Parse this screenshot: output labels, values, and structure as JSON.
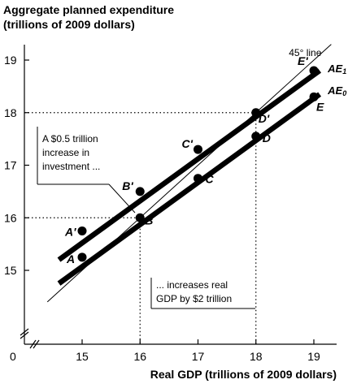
{
  "chart_data": {
    "type": "line",
    "title": "Aggregate planned expenditure",
    "title_line2": "(trillions of 2009 dollars)",
    "xlabel": "Real GDP (trillions of 2009 dollars)",
    "origin_label": "0",
    "xlim": [
      14.3,
      19.5
    ],
    "ylim": [
      14.3,
      19.5
    ],
    "x_ticks": [
      15,
      16,
      17,
      18,
      19
    ],
    "y_ticks": [
      15,
      16,
      17,
      18,
      19
    ],
    "grid": false,
    "reference_line": {
      "label": "45° line",
      "x": [
        14.4,
        19.3
      ],
      "y": [
        14.4,
        19.3
      ]
    },
    "series": [
      {
        "name": "AE",
        "name_sub": "1",
        "x": [
          14.6,
          19.1
        ],
        "y": [
          15.2,
          18.8
        ],
        "points": [
          {
            "label": "A'",
            "x": 15,
            "y": 15.75
          },
          {
            "label": "B'",
            "x": 16,
            "y": 16.5
          },
          {
            "label": "C'",
            "x": 17,
            "y": 17.3
          },
          {
            "label": "D'",
            "x": 18,
            "y": 18
          },
          {
            "label": "E'",
            "x": 19,
            "y": 18.8
          }
        ]
      },
      {
        "name": "AE",
        "name_sub": "0",
        "x": [
          14.6,
          19.1
        ],
        "y": [
          14.75,
          18.35
        ],
        "points": [
          {
            "label": "A",
            "x": 15,
            "y": 15.25
          },
          {
            "label": "B",
            "x": 16,
            "y": 16
          },
          {
            "label": "C",
            "x": 17,
            "y": 16.75
          },
          {
            "label": "D",
            "x": 18,
            "y": 17.55
          },
          {
            "label": "E",
            "x": 19,
            "y": 18.3
          }
        ]
      }
    ],
    "guides": [
      {
        "x": 16,
        "y": 16
      },
      {
        "x": 18,
        "y": 18
      }
    ],
    "annotations": [
      {
        "lines": [
          "A $0.5 trillion",
          "increase in",
          "investment ..."
        ]
      },
      {
        "lines": [
          "... increases real",
          "GDP by $2 trillion"
        ]
      }
    ]
  }
}
